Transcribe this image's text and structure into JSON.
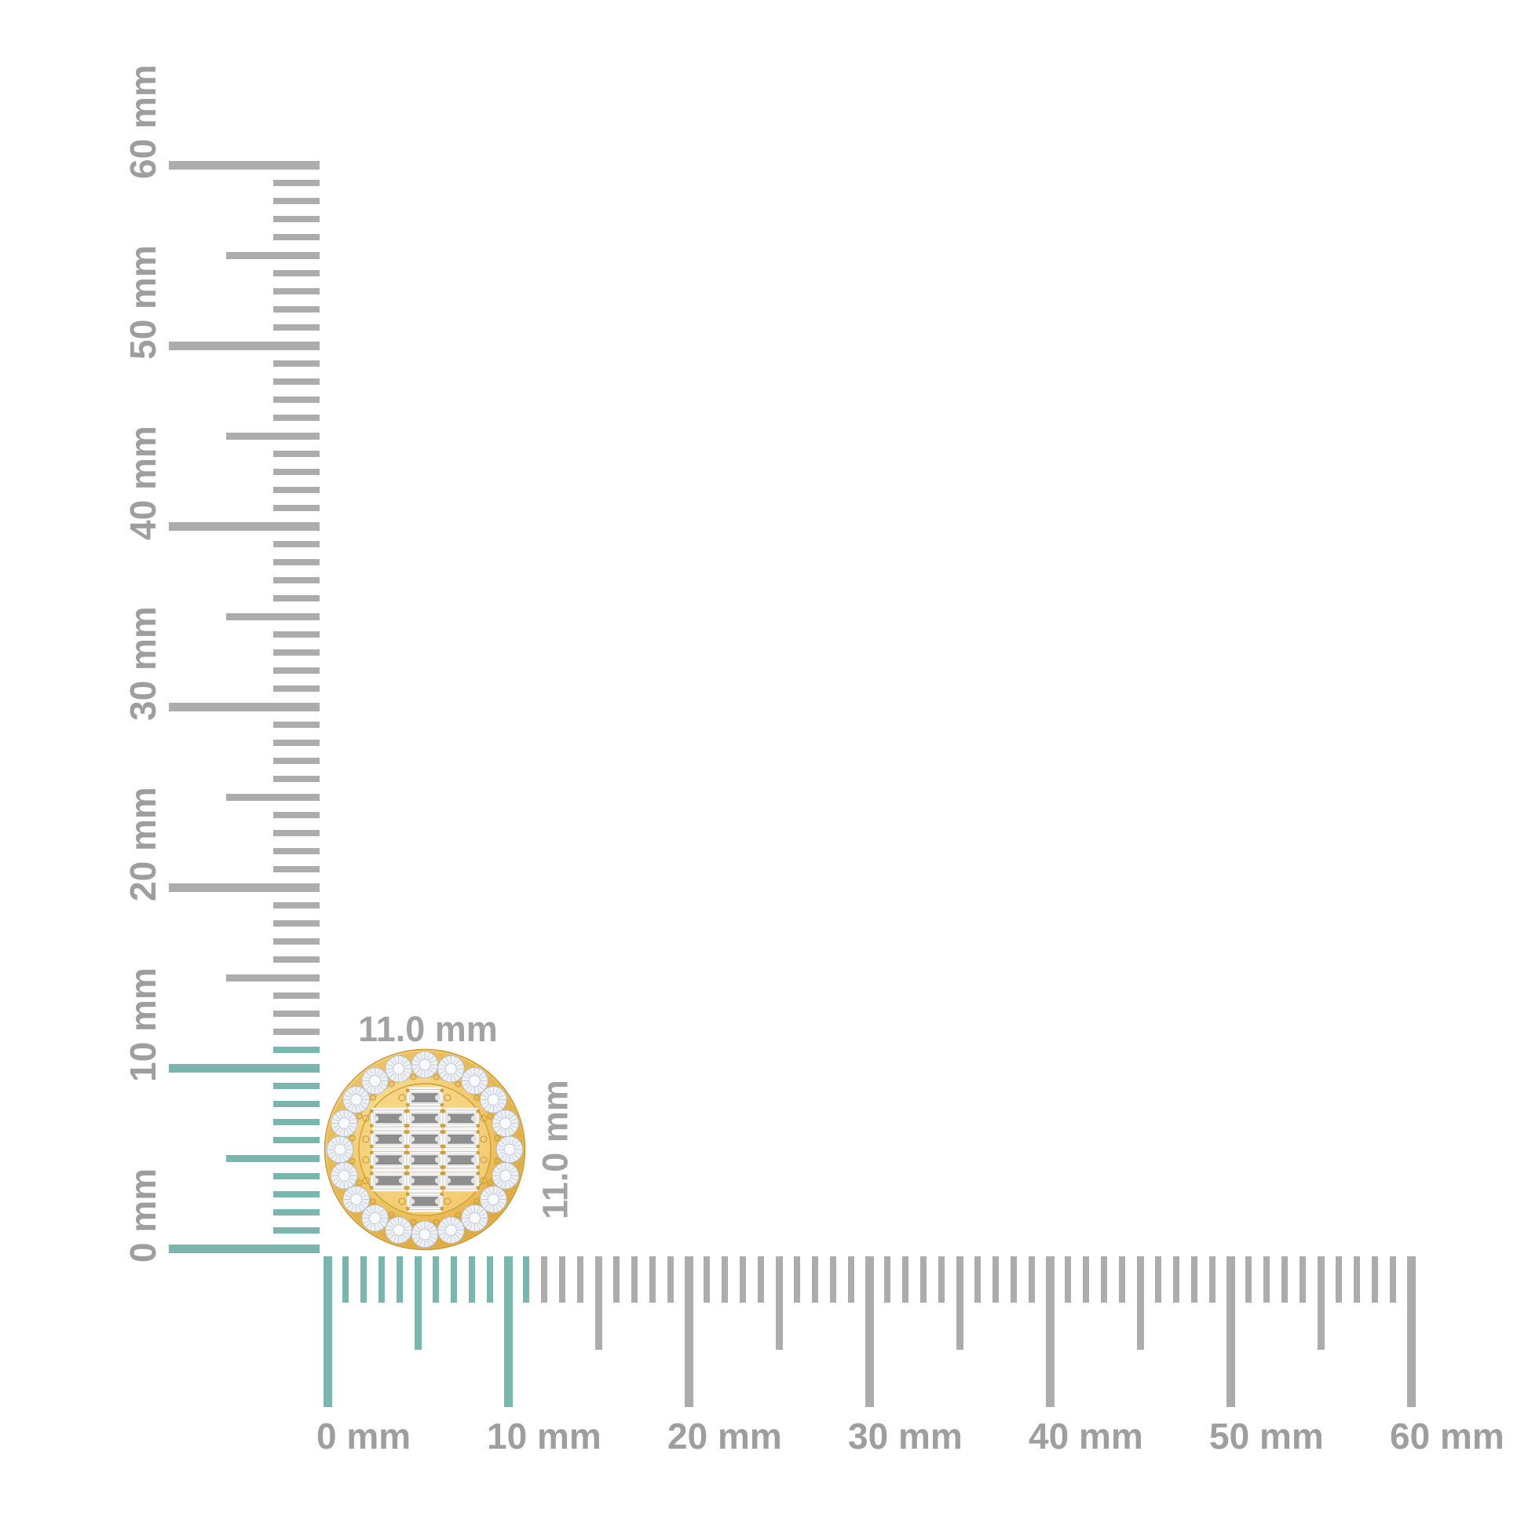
{
  "background": "#ffffff",
  "rulers": {
    "unit_suffix": " mm",
    "max_mm": 60,
    "mm_per_major": 10,
    "highlight_mm": 11,
    "colors": {
      "tick_gray": "#acacac",
      "tick_teal": "#79b6ae",
      "label": "#9e9e9e",
      "dim_label": "#a3a3a3"
    },
    "vertical_labels": [
      "0 mm",
      "10 mm",
      "20 mm",
      "30 mm",
      "40 mm",
      "50 mm",
      "60 mm"
    ],
    "horizontal_labels": [
      "0 mm",
      "10 mm",
      "20 mm",
      "30 mm",
      "40 mm",
      "50 mm",
      "60 mm"
    ]
  },
  "product": {
    "name": "yellow-gold diamond halo baguette cluster stud earring (top view)",
    "width_label": "11.0 mm",
    "height_label": "11.0 mm",
    "halo_stone_count": 20,
    "baguette_rows": [
      1,
      3,
      3,
      3,
      3,
      1
    ],
    "colors": {
      "gold_light": "#f9e09c",
      "gold_mid": "#f1c765",
      "gold_deep": "#dfa93f",
      "gold_rim": "#c9993a",
      "gold_prong": "#cda03c",
      "halo_channel": "#d9a53f",
      "diamond_fill": "#edf0f4",
      "diamond_edge": "#b5bcc8",
      "diamond_spoke": "#c3cad5",
      "diamond_table": "#f8fafc",
      "baguette_frame": "#fbfbfb",
      "baguette_frame_edge": "#c6c6c6",
      "baguette_step": "#efefef",
      "baguette_step_edge": "#d8d8d8",
      "baguette_bar": "#8f8f8f",
      "baguette_bar_edge": "#747474",
      "baguette_notch": "#e4e4e4"
    }
  }
}
